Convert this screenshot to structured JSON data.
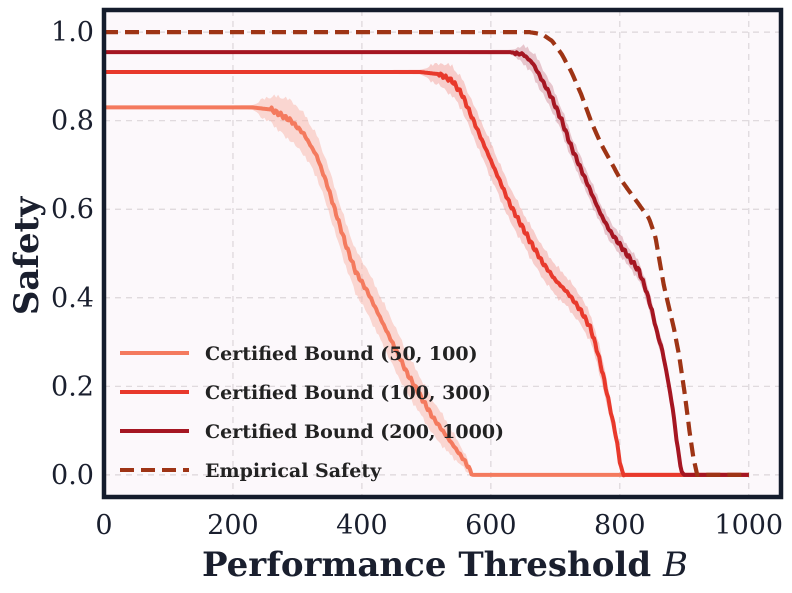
{
  "chart_data": {
    "type": "line",
    "xlabel": "Performance Threshold",
    "xlabel_var": "B",
    "ylabel": "Safety",
    "xlim": [
      0,
      1050
    ],
    "ylim": [
      -0.05,
      1.05
    ],
    "xticks": [
      0,
      200,
      400,
      600,
      800,
      1000
    ],
    "yticks": [
      0.0,
      0.2,
      0.4,
      0.6,
      0.8,
      1.0
    ],
    "xtick_labels": [
      "0",
      "200",
      "400",
      "600",
      "800",
      "1000"
    ],
    "ytick_labels": [
      "0.0",
      "0.2",
      "0.4",
      "0.6",
      "0.8",
      "1.0"
    ],
    "grid": true,
    "legend_position": "lower-left",
    "series": [
      {
        "name": "Certified Bound (50, 100)",
        "color": "#f47a5e",
        "band_color": "#f8b9ae",
        "style": "solid",
        "points": [
          [
            0,
            0.83
          ],
          [
            230,
            0.83
          ],
          [
            260,
            0.825
          ],
          [
            290,
            0.8
          ],
          [
            310,
            0.77
          ],
          [
            330,
            0.72
          ],
          [
            345,
            0.66
          ],
          [
            360,
            0.59
          ],
          [
            375,
            0.52
          ],
          [
            390,
            0.46
          ],
          [
            410,
            0.41
          ],
          [
            430,
            0.35
          ],
          [
            450,
            0.29
          ],
          [
            470,
            0.23
          ],
          [
            490,
            0.18
          ],
          [
            510,
            0.13
          ],
          [
            530,
            0.09
          ],
          [
            545,
            0.06
          ],
          [
            560,
            0.03
          ],
          [
            572,
            0.0
          ],
          [
            1000,
            0.0
          ]
        ],
        "band_width": [
          [
            0,
            0
          ],
          [
            230,
            0.005
          ],
          [
            280,
            0.04
          ],
          [
            350,
            0.045
          ],
          [
            450,
            0.045
          ],
          [
            530,
            0.03
          ],
          [
            565,
            0.01
          ],
          [
            572,
            0
          ]
        ]
      },
      {
        "name": "Certified Bound (100, 300)",
        "color": "#e8392c",
        "band_color": "#f3a9a4",
        "style": "solid",
        "points": [
          [
            0,
            0.91
          ],
          [
            490,
            0.91
          ],
          [
            520,
            0.905
          ],
          [
            540,
            0.89
          ],
          [
            555,
            0.86
          ],
          [
            570,
            0.81
          ],
          [
            585,
            0.76
          ],
          [
            600,
            0.71
          ],
          [
            615,
            0.66
          ],
          [
            630,
            0.61
          ],
          [
            645,
            0.57
          ],
          [
            660,
            0.53
          ],
          [
            680,
            0.48
          ],
          [
            700,
            0.44
          ],
          [
            720,
            0.41
          ],
          [
            740,
            0.37
          ],
          [
            755,
            0.33
          ],
          [
            765,
            0.28
          ],
          [
            775,
            0.22
          ],
          [
            785,
            0.15
          ],
          [
            795,
            0.08
          ],
          [
            800,
            0.03
          ],
          [
            805,
            0.0
          ],
          [
            1000,
            0.0
          ]
        ],
        "band_width": [
          [
            0,
            0
          ],
          [
            490,
            0.005
          ],
          [
            540,
            0.03
          ],
          [
            600,
            0.035
          ],
          [
            700,
            0.03
          ],
          [
            780,
            0.025
          ],
          [
            805,
            0
          ]
        ]
      },
      {
        "name": "Certified Bound (200, 1000)",
        "color": "#a51622",
        "band_color": "#d59aa6",
        "style": "solid",
        "points": [
          [
            0,
            0.955
          ],
          [
            630,
            0.955
          ],
          [
            650,
            0.95
          ],
          [
            665,
            0.93
          ],
          [
            680,
            0.89
          ],
          [
            695,
            0.85
          ],
          [
            710,
            0.8
          ],
          [
            725,
            0.74
          ],
          [
            740,
            0.69
          ],
          [
            755,
            0.64
          ],
          [
            770,
            0.59
          ],
          [
            785,
            0.55
          ],
          [
            800,
            0.52
          ],
          [
            815,
            0.49
          ],
          [
            830,
            0.46
          ],
          [
            840,
            0.42
          ],
          [
            850,
            0.37
          ],
          [
            858,
            0.32
          ],
          [
            866,
            0.28
          ],
          [
            874,
            0.22
          ],
          [
            882,
            0.15
          ],
          [
            888,
            0.08
          ],
          [
            893,
            0.03
          ],
          [
            897,
            0.0
          ],
          [
            1000,
            0.0
          ]
        ],
        "band_width": [
          [
            0,
            0
          ],
          [
            630,
            0.005
          ],
          [
            670,
            0.025
          ],
          [
            760,
            0.02
          ],
          [
            870,
            0.015
          ],
          [
            897,
            0
          ]
        ]
      },
      {
        "name": "Empirical Safety",
        "color": "#9e3415",
        "style": "dashed",
        "points": [
          [
            0,
            1.0
          ],
          [
            660,
            1.0
          ],
          [
            680,
            0.995
          ],
          [
            695,
            0.98
          ],
          [
            710,
            0.95
          ],
          [
            725,
            0.91
          ],
          [
            740,
            0.86
          ],
          [
            755,
            0.8
          ],
          [
            770,
            0.75
          ],
          [
            785,
            0.71
          ],
          [
            800,
            0.67
          ],
          [
            815,
            0.64
          ],
          [
            830,
            0.61
          ],
          [
            845,
            0.58
          ],
          [
            855,
            0.54
          ],
          [
            862,
            0.48
          ],
          [
            868,
            0.43
          ],
          [
            876,
            0.38
          ],
          [
            884,
            0.33
          ],
          [
            892,
            0.27
          ],
          [
            900,
            0.19
          ],
          [
            908,
            0.1
          ],
          [
            914,
            0.04
          ],
          [
            920,
            0.0
          ],
          [
            1000,
            0.0
          ]
        ]
      }
    ]
  }
}
